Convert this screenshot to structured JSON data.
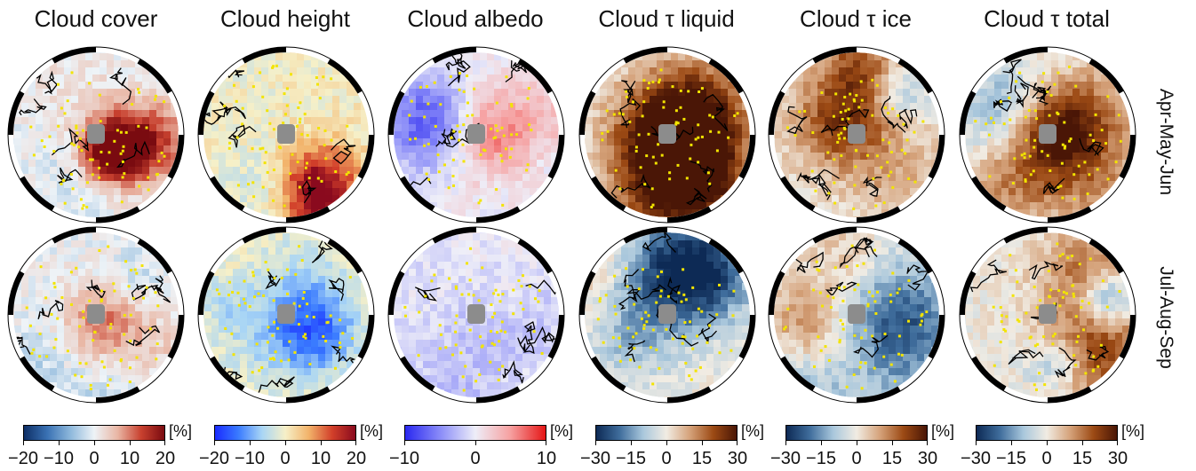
{
  "panels": [
    {
      "title": "Cloud cover",
      "colormap": [
        "#0e2f66",
        "#3a72b4",
        "#8fb9dc",
        "#eef3f7",
        "#e9b6a4",
        "#c8412f",
        "#7a0b10"
      ],
      "ticks": [
        "−20",
        "−10",
        "0",
        "10",
        "20"
      ]
    },
    {
      "title": "Cloud height",
      "colormap": [
        "#1a2bff",
        "#3a7bff",
        "#a8d5f5",
        "#f6f0c8",
        "#f2b36a",
        "#d2402a",
        "#8a0a1e"
      ],
      "ticks": [
        "−20",
        "−10",
        "0",
        "10",
        "20"
      ]
    },
    {
      "title": "Cloud albedo",
      "colormap": [
        "#2a28f0",
        "#8a8cf8",
        "#eeeef8",
        "#f6a0a0",
        "#e51616"
      ],
      "ticks": [
        "−10",
        "0",
        "10"
      ]
    },
    {
      "title": "Cloud τ liquid",
      "colormap": [
        "#0d2a55",
        "#3f6d9c",
        "#a9c7dc",
        "#f1ece3",
        "#d5a27a",
        "#9c4a14",
        "#4a1606"
      ],
      "ticks": [
        "−30",
        "−15",
        "0",
        "15",
        "30"
      ]
    },
    {
      "title": "Cloud τ ice",
      "colormap": [
        "#0d2a55",
        "#3f6d9c",
        "#a9c7dc",
        "#f1ece3",
        "#d5a27a",
        "#9c4a14",
        "#4a1606"
      ],
      "ticks": [
        "−30",
        "−15",
        "0",
        "15",
        "30"
      ]
    },
    {
      "title": "Cloud τ total",
      "colormap": [
        "#0d2a55",
        "#3f6d9c",
        "#a9c7dc",
        "#f1ece3",
        "#d5a27a",
        "#9c4a14",
        "#4a1606"
      ],
      "ticks": [
        "−30",
        "−15",
        "0",
        "15",
        "30"
      ]
    }
  ],
  "rows": [
    "Apr-May-Jun",
    "Jul-Aug-Sep"
  ],
  "unit_label": "[%]",
  "colors": {
    "significance_stipple": "#f2e400",
    "pole_mask": "#8c8c8c",
    "coastline": "#000000"
  }
}
